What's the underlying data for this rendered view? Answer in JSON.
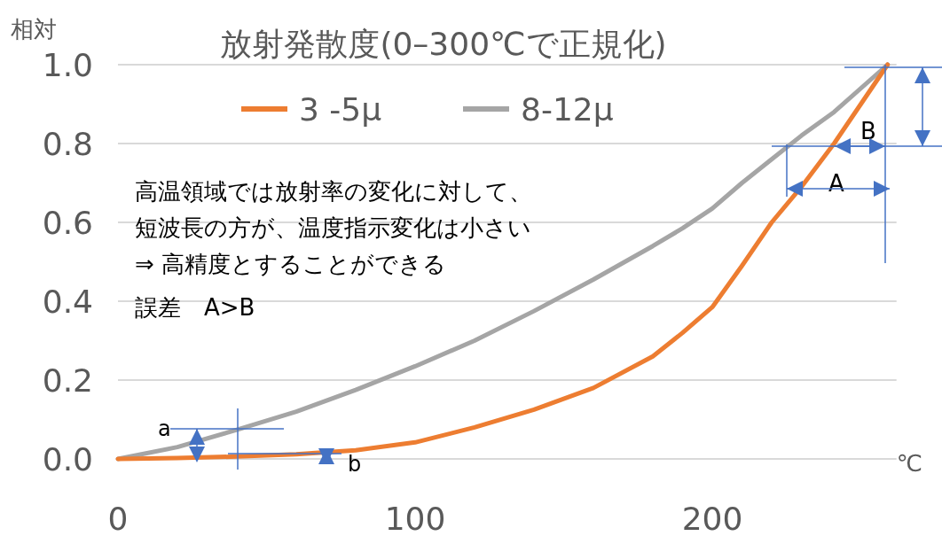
{
  "chart_data": {
    "type": "line",
    "title": "放射発散度(0–300℃で正規化)",
    "xlabel": "℃",
    "ylabel": "相対",
    "x": [
      0,
      20,
      40,
      60,
      80,
      100,
      120,
      140,
      160,
      180,
      190,
      200,
      210,
      220,
      230,
      241,
      259
    ],
    "series": [
      {
        "name": "3 -5μ",
        "color": "#ed7d31",
        "values": [
          0,
          0.002,
          0.006,
          0.012,
          0.022,
          0.042,
          0.08,
          0.125,
          0.18,
          0.26,
          0.32,
          0.385,
          0.49,
          0.6,
          0.69,
          0.8,
          1.0
        ]
      },
      {
        "name": "8-12μ",
        "color": "#a5a5a5",
        "values": [
          0,
          0.03,
          0.074,
          0.12,
          0.175,
          0.235,
          0.3,
          0.375,
          0.455,
          0.54,
          0.585,
          0.635,
          0.7,
          0.76,
          0.82,
          0.88,
          1.0
        ]
      }
    ],
    "xlim": [
      0,
      262
    ],
    "xticks": [
      0,
      100,
      200
    ],
    "ylim": [
      0,
      1.0
    ],
    "yticks": [
      {
        "value": 0,
        "label": "0.0"
      },
      {
        "value": 0.2,
        "label": "0.2"
      },
      {
        "value": 0.4,
        "label": "0.4"
      },
      {
        "value": 0.6,
        "label": "0.6"
      },
      {
        "value": 0.8,
        "label": "0.8"
      },
      {
        "value": 1.0,
        "label": "1.0"
      }
    ],
    "grid": "y",
    "legend": "top",
    "marker": "none",
    "line_style": "solid",
    "annotations": [
      "高温領域では放射率の変化に対して、",
      "短波長の方が、温度指示変化は小さい",
      "⇒ 高精度とすることができる",
      "誤差　A>B",
      "A",
      "B",
      {
        "text": "a",
        "x": 27,
        "y": 0.003
      },
      {
        "text": "b",
        "x": 70,
        "y": 0.012
      }
    ]
  }
}
